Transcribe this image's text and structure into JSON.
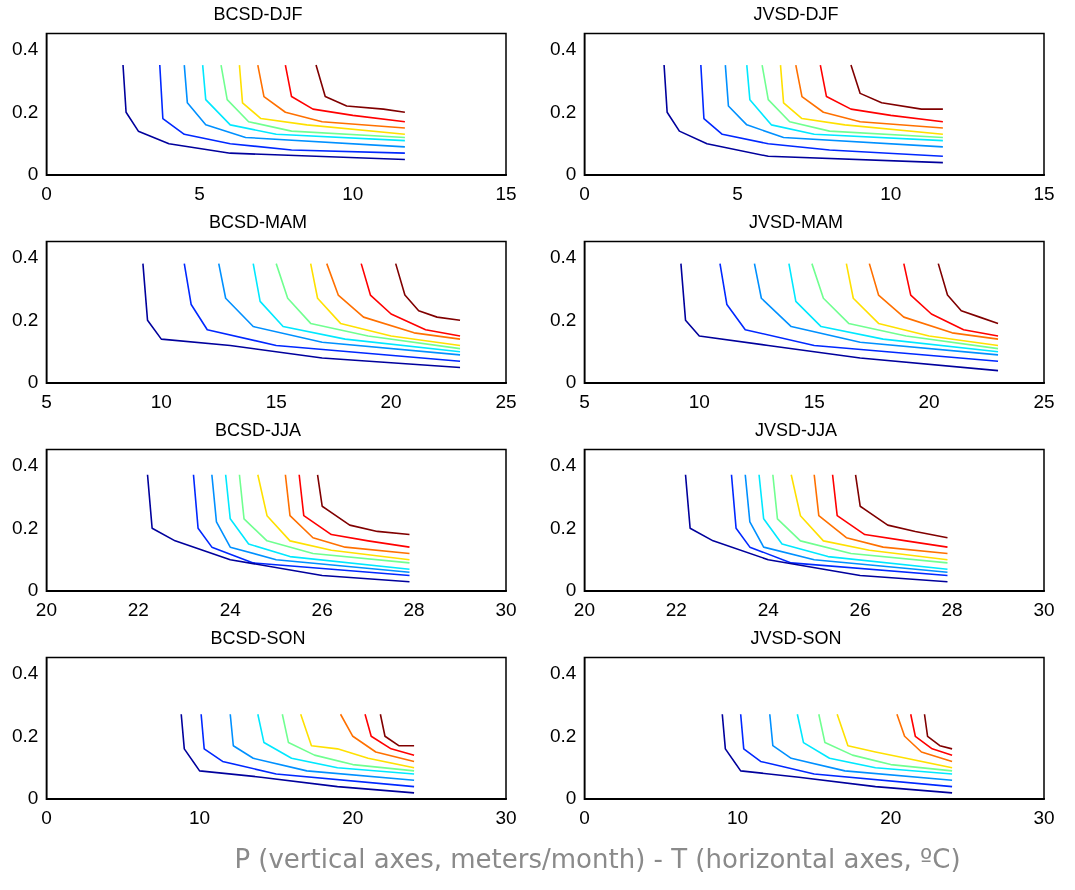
{
  "chart_data": [
    {
      "type": "line",
      "title": "BCSD-DJF",
      "xlim": [
        0,
        15
      ],
      "xticks": [
        0,
        5,
        10,
        15
      ],
      "ylim": [
        0,
        0.45
      ],
      "yticks": [
        0,
        0.2,
        0.4
      ],
      "series": [
        {
          "color": "#00009c",
          "x": [
            2.5,
            2.6,
            3,
            4,
            6,
            11.7
          ],
          "values": [
            0.35,
            0.2,
            0.14,
            0.1,
            0.07,
            0.05
          ]
        },
        {
          "color": "#0028ff",
          "x": [
            3.7,
            3.8,
            4.5,
            6,
            8,
            11.7
          ],
          "values": [
            0.35,
            0.18,
            0.13,
            0.1,
            0.08,
            0.07
          ]
        },
        {
          "color": "#0090ff",
          "x": [
            4.5,
            4.6,
            5.2,
            6.5,
            11.7
          ],
          "values": [
            0.35,
            0.23,
            0.16,
            0.12,
            0.09
          ]
        },
        {
          "color": "#00e8ff",
          "x": [
            5.1,
            5.2,
            6,
            7.5,
            11.7
          ],
          "values": [
            0.35,
            0.24,
            0.16,
            0.13,
            0.11
          ]
        },
        {
          "color": "#70ff90",
          "x": [
            5.7,
            5.9,
            6.6,
            8,
            11.7
          ],
          "values": [
            0.35,
            0.24,
            0.17,
            0.14,
            0.12
          ]
        },
        {
          "color": "#ffe000",
          "x": [
            6.3,
            6.4,
            7,
            8.5,
            11.7
          ],
          "values": [
            0.35,
            0.23,
            0.18,
            0.16,
            0.13
          ]
        },
        {
          "color": "#ff7000",
          "x": [
            6.9,
            7.1,
            7.8,
            9,
            11.7
          ],
          "values": [
            0.35,
            0.25,
            0.2,
            0.17,
            0.15
          ]
        },
        {
          "color": "#ff0000",
          "x": [
            7.8,
            8,
            8.7,
            10,
            11.7
          ],
          "values": [
            0.35,
            0.25,
            0.21,
            0.19,
            0.17
          ]
        },
        {
          "color": "#800000",
          "x": [
            8.8,
            9.1,
            9.8,
            11,
            11.7
          ],
          "values": [
            0.35,
            0.25,
            0.22,
            0.21,
            0.2
          ]
        }
      ]
    },
    {
      "type": "line",
      "title": "JVSD-DJF",
      "xlim": [
        0,
        15
      ],
      "xticks": [
        0,
        5,
        10,
        15
      ],
      "ylim": [
        0,
        0.45
      ],
      "yticks": [
        0,
        0.2,
        0.4
      ],
      "series": [
        {
          "color": "#00009c",
          "x": [
            2.6,
            2.7,
            3.1,
            4,
            6,
            11.7
          ],
          "values": [
            0.35,
            0.2,
            0.14,
            0.1,
            0.06,
            0.04
          ]
        },
        {
          "color": "#0028ff",
          "x": [
            3.8,
            3.9,
            4.5,
            6,
            8,
            11.7
          ],
          "values": [
            0.35,
            0.18,
            0.13,
            0.1,
            0.08,
            0.06
          ]
        },
        {
          "color": "#0090ff",
          "x": [
            4.6,
            4.7,
            5.3,
            6.5,
            11.7
          ],
          "values": [
            0.35,
            0.22,
            0.16,
            0.12,
            0.09
          ]
        },
        {
          "color": "#00e8ff",
          "x": [
            5.3,
            5.4,
            6.1,
            7.5,
            11.7
          ],
          "values": [
            0.35,
            0.24,
            0.16,
            0.13,
            0.11
          ]
        },
        {
          "color": "#70ff90",
          "x": [
            5.8,
            6,
            6.7,
            8,
            11.7
          ],
          "values": [
            0.35,
            0.24,
            0.17,
            0.14,
            0.12
          ]
        },
        {
          "color": "#ffe000",
          "x": [
            6.4,
            6.5,
            7.1,
            8.5,
            11.7
          ],
          "values": [
            0.35,
            0.23,
            0.18,
            0.16,
            0.13
          ]
        },
        {
          "color": "#ff7000",
          "x": [
            6.9,
            7.1,
            7.8,
            9,
            11.7
          ],
          "values": [
            0.35,
            0.25,
            0.2,
            0.17,
            0.15
          ]
        },
        {
          "color": "#ff0000",
          "x": [
            7.7,
            7.9,
            8.7,
            10,
            11.7
          ],
          "values": [
            0.35,
            0.25,
            0.21,
            0.19,
            0.17
          ]
        },
        {
          "color": "#800000",
          "x": [
            8.7,
            9,
            9.7,
            11,
            11.7
          ],
          "values": [
            0.35,
            0.26,
            0.23,
            0.21,
            0.21
          ]
        }
      ]
    },
    {
      "type": "line",
      "title": "BCSD-MAM",
      "xlim": [
        5,
        25
      ],
      "xticks": [
        5,
        10,
        15,
        20,
        25
      ],
      "ylim": [
        0,
        0.45
      ],
      "yticks": [
        0,
        0.2,
        0.4
      ],
      "series": [
        {
          "color": "#00009c",
          "x": [
            9.2,
            9.4,
            10,
            13,
            17,
            23
          ],
          "values": [
            0.38,
            0.2,
            0.14,
            0.12,
            0.08,
            0.05
          ]
        },
        {
          "color": "#0028ff",
          "x": [
            11,
            11.3,
            12,
            15,
            23
          ],
          "values": [
            0.38,
            0.25,
            0.17,
            0.12,
            0.07
          ]
        },
        {
          "color": "#0090ff",
          "x": [
            12.5,
            12.8,
            14,
            17,
            23
          ],
          "values": [
            0.38,
            0.27,
            0.18,
            0.13,
            0.09
          ]
        },
        {
          "color": "#00e8ff",
          "x": [
            14,
            14.3,
            15.3,
            18,
            23
          ],
          "values": [
            0.38,
            0.26,
            0.18,
            0.14,
            0.1
          ]
        },
        {
          "color": "#70ff90",
          "x": [
            15,
            15.5,
            16.5,
            19,
            23
          ],
          "values": [
            0.38,
            0.27,
            0.19,
            0.15,
            0.11
          ]
        },
        {
          "color": "#ffe000",
          "x": [
            16.5,
            16.8,
            17.8,
            20,
            23
          ],
          "values": [
            0.38,
            0.27,
            0.19,
            0.15,
            0.12
          ]
        },
        {
          "color": "#ff7000",
          "x": [
            17.2,
            17.7,
            18.8,
            21,
            23
          ],
          "values": [
            0.38,
            0.28,
            0.21,
            0.16,
            0.14
          ]
        },
        {
          "color": "#ff0000",
          "x": [
            18.7,
            19.1,
            20,
            21.5,
            23
          ],
          "values": [
            0.38,
            0.28,
            0.22,
            0.17,
            0.15
          ]
        },
        {
          "color": "#800000",
          "x": [
            20.2,
            20.6,
            21.2,
            22,
            23
          ],
          "values": [
            0.38,
            0.28,
            0.23,
            0.21,
            0.2
          ]
        }
      ]
    },
    {
      "type": "line",
      "title": "JVSD-MAM",
      "xlim": [
        5,
        25
      ],
      "xticks": [
        5,
        10,
        15,
        20,
        25
      ],
      "ylim": [
        0,
        0.45
      ],
      "yticks": [
        0,
        0.2,
        0.4
      ],
      "series": [
        {
          "color": "#00009c",
          "x": [
            9.2,
            9.4,
            10,
            13,
            17,
            23
          ],
          "values": [
            0.38,
            0.2,
            0.15,
            0.12,
            0.08,
            0.04
          ]
        },
        {
          "color": "#0028ff",
          "x": [
            10.9,
            11.2,
            12,
            15,
            23
          ],
          "values": [
            0.38,
            0.25,
            0.17,
            0.12,
            0.07
          ]
        },
        {
          "color": "#0090ff",
          "x": [
            12.4,
            12.7,
            14,
            17,
            23
          ],
          "values": [
            0.38,
            0.27,
            0.18,
            0.13,
            0.09
          ]
        },
        {
          "color": "#00e8ff",
          "x": [
            13.9,
            14.2,
            15.3,
            18,
            23
          ],
          "values": [
            0.38,
            0.26,
            0.18,
            0.14,
            0.1
          ]
        },
        {
          "color": "#70ff90",
          "x": [
            14.9,
            15.4,
            16.5,
            19,
            23
          ],
          "values": [
            0.38,
            0.27,
            0.19,
            0.15,
            0.11
          ]
        },
        {
          "color": "#ffe000",
          "x": [
            16.4,
            16.7,
            17.8,
            20,
            23
          ],
          "values": [
            0.38,
            0.27,
            0.19,
            0.15,
            0.12
          ]
        },
        {
          "color": "#ff7000",
          "x": [
            17.4,
            17.8,
            18.9,
            21,
            23
          ],
          "values": [
            0.38,
            0.28,
            0.21,
            0.16,
            0.14
          ]
        },
        {
          "color": "#ff0000",
          "x": [
            18.9,
            19.2,
            20.1,
            21.5,
            23
          ],
          "values": [
            0.38,
            0.28,
            0.22,
            0.17,
            0.15
          ]
        },
        {
          "color": "#800000",
          "x": [
            20.4,
            20.8,
            21.4,
            22.2,
            23
          ],
          "values": [
            0.38,
            0.28,
            0.23,
            0.21,
            0.19
          ]
        }
      ]
    },
    {
      "type": "line",
      "title": "BCSD-JJA",
      "xlim": [
        20,
        30
      ],
      "xticks": [
        20,
        22,
        24,
        26,
        28,
        30
      ],
      "ylim": [
        0,
        0.45
      ],
      "yticks": [
        0,
        0.2,
        0.4
      ],
      "series": [
        {
          "color": "#00009c",
          "x": [
            22.2,
            22.3,
            22.8,
            24,
            26,
            27.9
          ],
          "values": [
            0.37,
            0.2,
            0.16,
            0.1,
            0.05,
            0.03
          ]
        },
        {
          "color": "#0028ff",
          "x": [
            23.2,
            23.3,
            23.6,
            24.5,
            27.9
          ],
          "values": [
            0.37,
            0.2,
            0.14,
            0.09,
            0.05
          ]
        },
        {
          "color": "#0090ff",
          "x": [
            23.6,
            23.7,
            24,
            25,
            27.9
          ],
          "values": [
            0.37,
            0.22,
            0.14,
            0.1,
            0.06
          ]
        },
        {
          "color": "#00e8ff",
          "x": [
            23.9,
            24,
            24.4,
            25.3,
            27.9
          ],
          "values": [
            0.37,
            0.23,
            0.15,
            0.11,
            0.07
          ]
        },
        {
          "color": "#70ff90",
          "x": [
            24.2,
            24.3,
            24.8,
            25.8,
            27.9
          ],
          "values": [
            0.37,
            0.23,
            0.16,
            0.12,
            0.09
          ]
        },
        {
          "color": "#ffe000",
          "x": [
            24.6,
            24.8,
            25.3,
            26.2,
            27.9
          ],
          "values": [
            0.37,
            0.24,
            0.16,
            0.13,
            0.1
          ]
        },
        {
          "color": "#ff7000",
          "x": [
            25.2,
            25.3,
            25.8,
            26.5,
            27.9
          ],
          "values": [
            0.37,
            0.24,
            0.17,
            0.14,
            0.12
          ]
        },
        {
          "color": "#ff0000",
          "x": [
            25.5,
            25.6,
            26.2,
            27,
            27.9
          ],
          "values": [
            0.37,
            0.24,
            0.18,
            0.16,
            0.14
          ]
        },
        {
          "color": "#800000",
          "x": [
            25.9,
            26,
            26.6,
            27.2,
            27.9
          ],
          "values": [
            0.37,
            0.27,
            0.21,
            0.19,
            0.18
          ]
        }
      ]
    },
    {
      "type": "line",
      "title": "JVSD-JJA",
      "xlim": [
        20,
        30
      ],
      "xticks": [
        20,
        22,
        24,
        26,
        28,
        30
      ],
      "ylim": [
        0,
        0.45
      ],
      "yticks": [
        0,
        0.2,
        0.4
      ],
      "series": [
        {
          "color": "#00009c",
          "x": [
            22.2,
            22.3,
            22.8,
            24,
            26,
            27.9
          ],
          "values": [
            0.37,
            0.2,
            0.16,
            0.1,
            0.05,
            0.03
          ]
        },
        {
          "color": "#0028ff",
          "x": [
            23.2,
            23.3,
            23.6,
            24.5,
            27.9
          ],
          "values": [
            0.37,
            0.2,
            0.14,
            0.09,
            0.05
          ]
        },
        {
          "color": "#0090ff",
          "x": [
            23.5,
            23.6,
            23.9,
            25,
            27.9
          ],
          "values": [
            0.37,
            0.22,
            0.14,
            0.1,
            0.06
          ]
        },
        {
          "color": "#00e8ff",
          "x": [
            23.8,
            23.9,
            24.3,
            25.3,
            27.9
          ],
          "values": [
            0.37,
            0.23,
            0.15,
            0.11,
            0.07
          ]
        },
        {
          "color": "#70ff90",
          "x": [
            24.1,
            24.2,
            24.7,
            25.8,
            27.9
          ],
          "values": [
            0.37,
            0.23,
            0.16,
            0.12,
            0.09
          ]
        },
        {
          "color": "#ffe000",
          "x": [
            24.5,
            24.7,
            25.2,
            26.2,
            27.9
          ],
          "values": [
            0.37,
            0.24,
            0.16,
            0.13,
            0.1
          ]
        },
        {
          "color": "#ff7000",
          "x": [
            25,
            25.1,
            25.7,
            26.5,
            27.9
          ],
          "values": [
            0.37,
            0.24,
            0.17,
            0.14,
            0.12
          ]
        },
        {
          "color": "#ff0000",
          "x": [
            25.4,
            25.5,
            26.1,
            27,
            27.9
          ],
          "values": [
            0.37,
            0.24,
            0.18,
            0.16,
            0.14
          ]
        },
        {
          "color": "#800000",
          "x": [
            25.9,
            26,
            26.6,
            27.2,
            27.9
          ],
          "values": [
            0.37,
            0.27,
            0.21,
            0.19,
            0.17
          ]
        }
      ]
    },
    {
      "type": "line",
      "title": "BCSD-SON",
      "xlim": [
        0,
        30
      ],
      "xticks": [
        0,
        10,
        20,
        30
      ],
      "ylim": [
        0,
        0.45
      ],
      "yticks": [
        0,
        0.2,
        0.4
      ],
      "series": [
        {
          "color": "#00009c",
          "x": [
            8.8,
            9,
            10,
            14,
            19,
            24
          ],
          "values": [
            0.27,
            0.16,
            0.09,
            0.07,
            0.04,
            0.02
          ]
        },
        {
          "color": "#0028ff",
          "x": [
            10.1,
            10.3,
            11.5,
            15,
            24
          ],
          "values": [
            0.27,
            0.16,
            0.12,
            0.08,
            0.04
          ]
        },
        {
          "color": "#0090ff",
          "x": [
            12,
            12.2,
            13.5,
            17,
            24
          ],
          "values": [
            0.27,
            0.17,
            0.13,
            0.09,
            0.06
          ]
        },
        {
          "color": "#00e8ff",
          "x": [
            13.8,
            14.2,
            16,
            19,
            24
          ],
          "values": [
            0.27,
            0.18,
            0.13,
            0.1,
            0.08
          ]
        },
        {
          "color": "#70ff90",
          "x": [
            15.4,
            15.8,
            17.5,
            20,
            24
          ],
          "values": [
            0.27,
            0.18,
            0.14,
            0.11,
            0.09
          ]
        },
        {
          "color": "#ffe000",
          "x": [
            16.6,
            17.3,
            19,
            21,
            24
          ],
          "values": [
            0.27,
            0.17,
            0.16,
            0.13,
            0.1
          ]
        },
        {
          "color": "#ff7000",
          "x": [
            19.2,
            20,
            21.5,
            24
          ],
          "values": [
            0.27,
            0.2,
            0.15,
            0.12
          ]
        },
        {
          "color": "#ff0000",
          "x": [
            20.8,
            21.2,
            22.5,
            24
          ],
          "values": [
            0.27,
            0.2,
            0.16,
            0.14
          ]
        },
        {
          "color": "#800000",
          "x": [
            21.8,
            22.1,
            23,
            24
          ],
          "values": [
            0.27,
            0.2,
            0.17,
            0.17
          ]
        }
      ]
    },
    {
      "type": "line",
      "title": "JVSD-SON",
      "xlim": [
        0,
        30
      ],
      "xticks": [
        0,
        10,
        20,
        30
      ],
      "ylim": [
        0,
        0.45
      ],
      "yticks": [
        0,
        0.2,
        0.4
      ],
      "annotations": [
        "P (vertical axes, meters/month) -  T (horizontal axes, ºC)"
      ],
      "series": [
        {
          "color": "#00009c",
          "x": [
            9,
            9.2,
            10.2,
            14,
            19,
            24
          ],
          "values": [
            0.27,
            0.16,
            0.09,
            0.07,
            0.04,
            0.02
          ]
        },
        {
          "color": "#0028ff",
          "x": [
            10.2,
            10.4,
            11.5,
            15,
            24
          ],
          "values": [
            0.27,
            0.16,
            0.12,
            0.08,
            0.04
          ]
        },
        {
          "color": "#0090ff",
          "x": [
            12.1,
            12.3,
            13.5,
            17,
            24
          ],
          "values": [
            0.27,
            0.17,
            0.13,
            0.09,
            0.06
          ]
        },
        {
          "color": "#00e8ff",
          "x": [
            13.9,
            14.3,
            16,
            19,
            24
          ],
          "values": [
            0.27,
            0.18,
            0.13,
            0.1,
            0.08
          ]
        },
        {
          "color": "#70ff90",
          "x": [
            15.3,
            15.7,
            17.5,
            20,
            24
          ],
          "values": [
            0.27,
            0.18,
            0.14,
            0.11,
            0.09
          ]
        },
        {
          "color": "#ffe000",
          "x": [
            16.5,
            17.2,
            19,
            21,
            24
          ],
          "values": [
            0.27,
            0.17,
            0.15,
            0.13,
            0.1
          ]
        },
        {
          "color": "#ff7000",
          "x": [
            20.4,
            20.9,
            22,
            24
          ],
          "values": [
            0.27,
            0.2,
            0.15,
            0.12
          ]
        },
        {
          "color": "#ff0000",
          "x": [
            21.3,
            21.6,
            22.7,
            24
          ],
          "values": [
            0.27,
            0.2,
            0.16,
            0.14
          ]
        },
        {
          "color": "#800000",
          "x": [
            22.2,
            22.4,
            23.2,
            24
          ],
          "values": [
            0.27,
            0.2,
            0.17,
            0.16
          ]
        }
      ]
    }
  ]
}
